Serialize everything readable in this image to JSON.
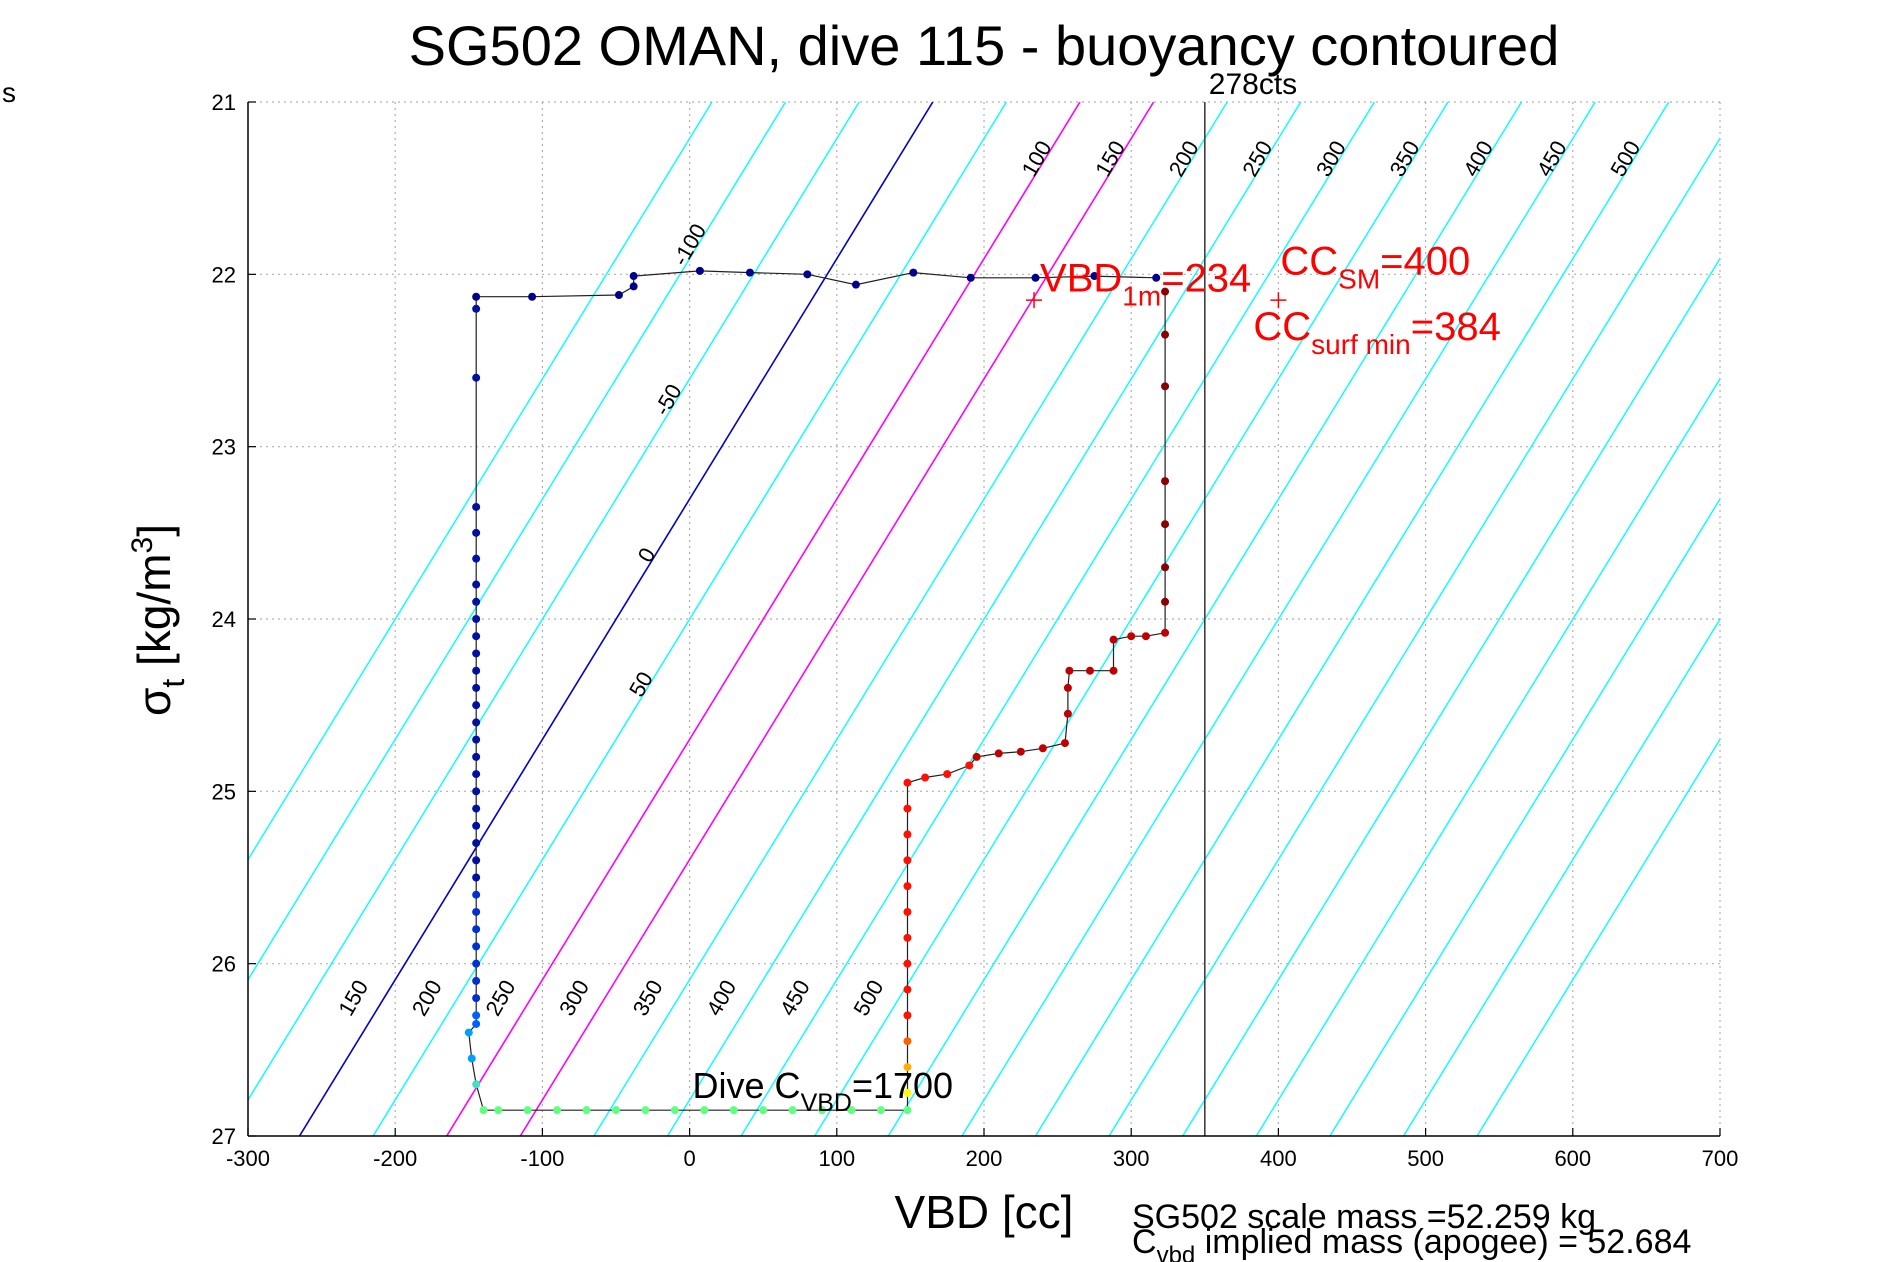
{
  "chart_data": {
    "type": "scatter",
    "title": "SG502 OMAN, dive 115 - buoyancy contoured",
    "xlabel": "VBD [cc]",
    "ylabel": "σt [kg/m³]",
    "ylabel_main": "σ",
    "ylabel_sub": "t",
    "ylabel_units": " [kg/m",
    "ylabel_sup": "3",
    "ylabel_close": "]",
    "left_margin_text": "s",
    "xlim": [
      -300,
      700
    ],
    "ylim": [
      27,
      21
    ],
    "y_reversed": true,
    "grid": true,
    "x_ticks": [
      -300,
      -200,
      -100,
      0,
      100,
      200,
      300,
      400,
      500,
      600,
      700
    ],
    "x_tick_labels": [
      "-300",
      "-200",
      "-100",
      "0",
      "100",
      "200",
      "300",
      "400",
      "500",
      "600",
      "700"
    ],
    "y_ticks": [
      21,
      22,
      23,
      24,
      25,
      26,
      27
    ],
    "y_tick_labels": [
      "21",
      "22",
      "23",
      "24",
      "25",
      "26",
      "27"
    ],
    "buoyancy_contours": {
      "levels": [
        -150,
        -100,
        -50,
        0,
        50,
        100,
        150,
        200,
        250,
        300,
        350,
        400,
        450,
        500,
        550,
        600,
        650,
        700,
        750,
        800
      ],
      "zero_level": 0,
      "magenta_levels": [
        100,
        150
      ],
      "colors": {
        "normal": "#00ffff",
        "zero": "#0000cc",
        "highlight": "#ff00ff"
      },
      "top_labels": [
        "-100",
        "-50",
        "0",
        "50",
        "100",
        "150",
        "200",
        "250",
        "300",
        "350",
        "400",
        "450",
        "500"
      ],
      "bottom_labels": [
        "150",
        "200",
        "250",
        "300",
        "350",
        "400",
        "450",
        "500"
      ]
    },
    "vertical_line": {
      "x": 350,
      "label": "278cts",
      "color": "#404040"
    },
    "annotations": {
      "vbd_1m": {
        "prefix": "VBD",
        "sub": "1m",
        "value": "=234",
        "x": 234,
        "y": 22.15
      },
      "cc_sm": {
        "prefix": "CC",
        "sub": "SM",
        "value": "=400",
        "x": 400,
        "y": 22.15
      },
      "cc_surf_min": {
        "prefix": "CC",
        "sub": "surf min",
        "value": "=384"
      },
      "dive_cvbd": {
        "prefix": "Dive C",
        "sub": "VBD",
        "value": "=1700"
      },
      "scale_mass": "SG502 scale mass =52.259 kg",
      "implied_mass_prefix": "C",
      "implied_mass_sub": "vbd",
      "implied_mass_text": " implied mass (apogee) = 52.684"
    },
    "annotation_color": "#ff0000",
    "series": [
      {
        "name": "",
        "segment": "descent",
        "color": "#00008b",
        "points": [
          [
            -145,
            22.13
          ],
          [
            -107,
            22.13
          ],
          [
            -48,
            22.12
          ],
          [
            -38,
            22.07
          ],
          [
            -38,
            22.01
          ],
          [
            7,
            21.98
          ],
          [
            41,
            21.99
          ],
          [
            80,
            22.0
          ],
          [
            113,
            22.06
          ],
          [
            152,
            21.99
          ],
          [
            191,
            22.02
          ],
          [
            235,
            22.02
          ],
          [
            275,
            22.01
          ],
          [
            317,
            22.02
          ]
        ]
      },
      {
        "name": "",
        "segment": "profile",
        "color": "#0000a0",
        "points": [
          [
            -145,
            22.2
          ],
          [
            -145,
            22.6
          ],
          [
            -145,
            23.35
          ],
          [
            -145,
            23.5
          ],
          [
            -145,
            23.65
          ],
          [
            -145,
            23.8
          ],
          [
            -145,
            23.9
          ],
          [
            -145,
            24.0
          ],
          [
            -145,
            24.1
          ],
          [
            -145,
            24.2
          ],
          [
            -145,
            24.3
          ],
          [
            -145,
            24.4
          ],
          [
            -145,
            24.5
          ],
          [
            -145,
            24.6
          ],
          [
            -145,
            24.7
          ],
          [
            -145,
            24.8
          ],
          [
            -145,
            24.9
          ],
          [
            -145,
            25.0
          ],
          [
            -145,
            25.1
          ],
          [
            -145,
            25.2
          ],
          [
            -145,
            25.3
          ],
          [
            -145,
            25.4
          ],
          [
            -145,
            25.5
          ],
          [
            -145,
            25.6
          ],
          [
            -145,
            25.7
          ],
          [
            -145,
            25.8
          ],
          [
            -145,
            25.9
          ],
          [
            -145,
            26.0
          ],
          [
            -145,
            26.1
          ],
          [
            -145,
            26.2
          ],
          [
            -145,
            26.3
          ],
          [
            -145,
            26.35
          ]
        ]
      },
      {
        "name": "",
        "segment": "bottom",
        "color": "#60ff80",
        "points": [
          [
            -150,
            26.4
          ],
          [
            -148,
            26.55
          ],
          [
            -145,
            26.7
          ],
          [
            -140,
            26.85
          ],
          [
            -130,
            26.85
          ],
          [
            -110,
            26.85
          ],
          [
            -90,
            26.85
          ],
          [
            -70,
            26.85
          ],
          [
            -50,
            26.85
          ],
          [
            -30,
            26.85
          ],
          [
            -10,
            26.85
          ],
          [
            10,
            26.85
          ],
          [
            30,
            26.85
          ],
          [
            50,
            26.85
          ],
          [
            70,
            26.85
          ],
          [
            90,
            26.85
          ],
          [
            110,
            26.85
          ],
          [
            130,
            26.85
          ],
          [
            148,
            26.85
          ]
        ]
      },
      {
        "name": "",
        "segment": "climb",
        "color": "#ff2000",
        "points": [
          [
            148,
            26.75
          ],
          [
            148,
            26.6
          ],
          [
            148,
            26.45
          ],
          [
            148,
            26.3
          ],
          [
            148,
            26.15
          ],
          [
            148,
            26.0
          ],
          [
            148,
            25.85
          ],
          [
            148,
            25.7
          ],
          [
            148,
            25.55
          ],
          [
            148,
            25.4
          ],
          [
            148,
            25.25
          ],
          [
            148,
            25.1
          ],
          [
            148,
            24.95
          ],
          [
            160,
            24.92
          ],
          [
            175,
            24.9
          ],
          [
            190,
            24.85
          ],
          [
            195,
            24.8
          ],
          [
            210,
            24.78
          ],
          [
            225,
            24.77
          ],
          [
            240,
            24.75
          ],
          [
            255,
            24.72
          ],
          [
            257,
            24.55
          ],
          [
            257,
            24.4
          ],
          [
            258,
            24.3
          ],
          [
            272,
            24.3
          ],
          [
            288,
            24.3
          ],
          [
            288,
            24.12
          ],
          [
            300,
            24.1
          ],
          [
            310,
            24.1
          ],
          [
            323,
            24.08
          ],
          [
            323,
            23.9
          ],
          [
            323,
            23.7
          ],
          [
            323,
            23.45
          ],
          [
            323,
            23.2
          ],
          [
            323,
            22.65
          ],
          [
            323,
            22.35
          ],
          [
            323,
            22.1
          ]
        ]
      }
    ]
  }
}
